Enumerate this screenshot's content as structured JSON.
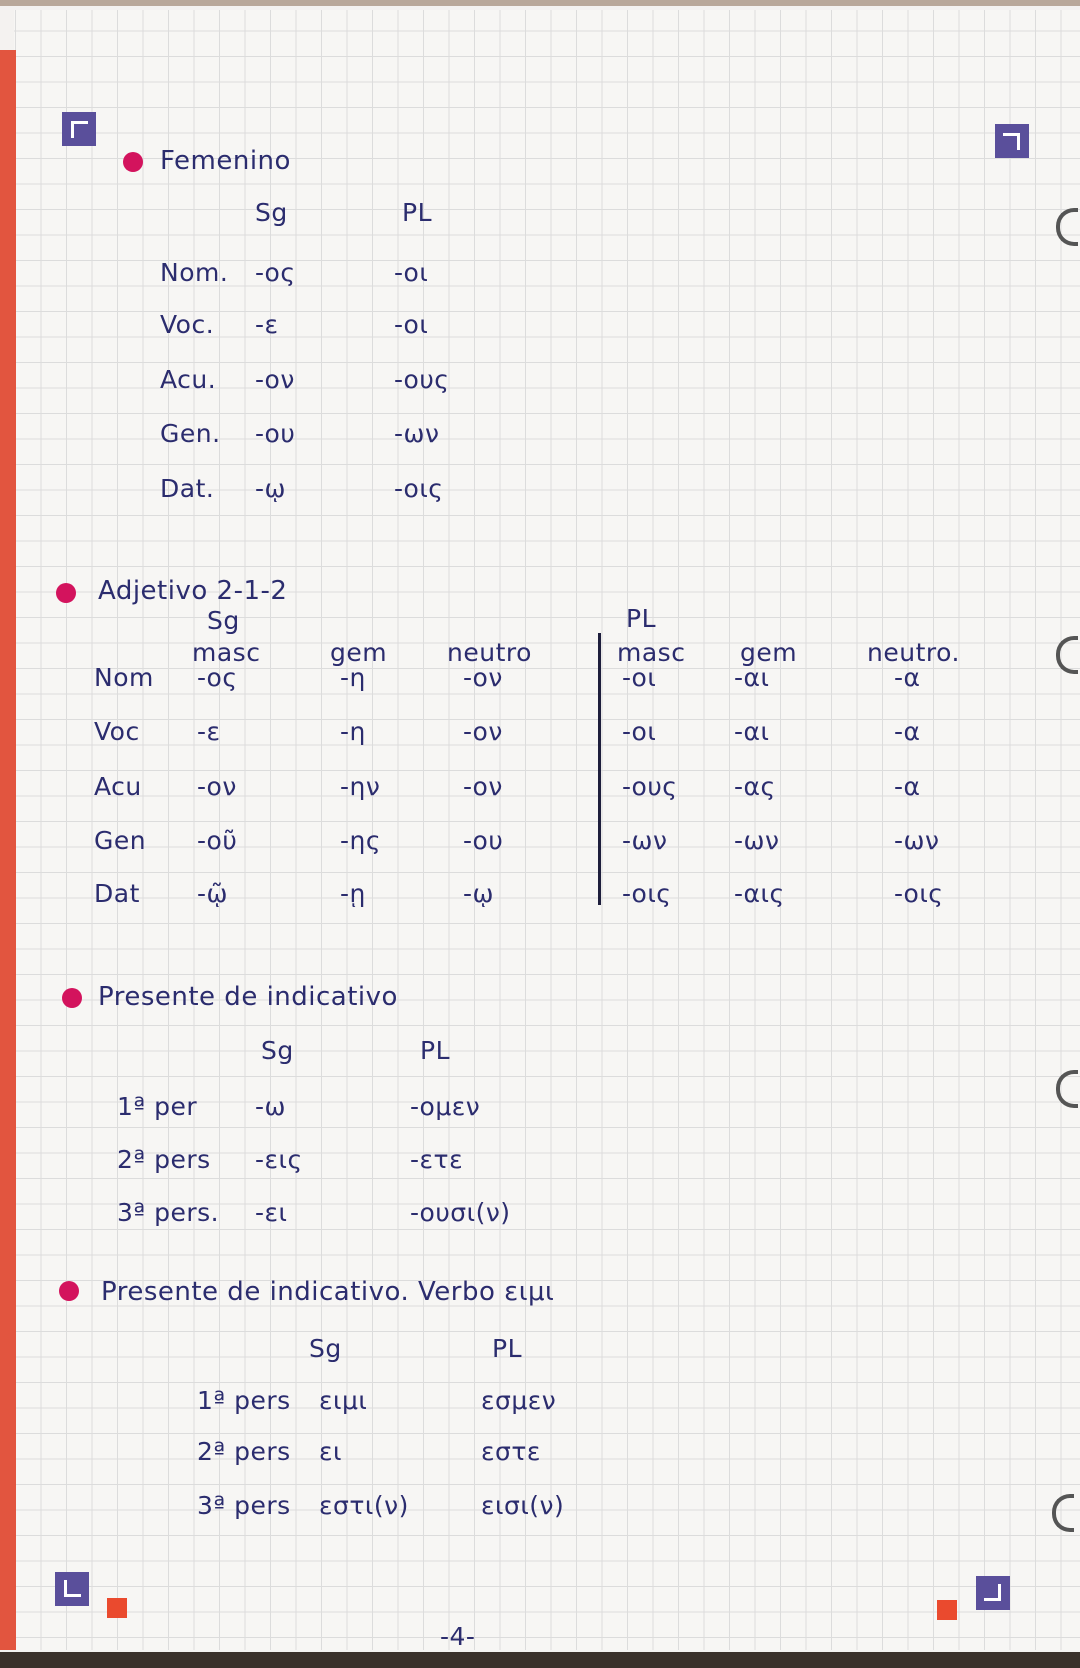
{
  "femenino": {
    "title": "Femenino",
    "headers": [
      "Sg",
      "PL"
    ],
    "rows": [
      [
        "Nom.",
        "-ος",
        "-οι"
      ],
      [
        "Voc.",
        "-ε",
        "-οι"
      ],
      [
        "Acu.",
        "-ον",
        "-ους"
      ],
      [
        "Gen.",
        "-ου",
        "-ων"
      ],
      [
        "Dat.",
        "-ῳ",
        "-οις"
      ]
    ]
  },
  "adjetivo": {
    "title": "Adjetivo 2-1-2",
    "sg": "Sg",
    "pl": "PL",
    "subheaders": [
      "masc",
      "gem",
      "neutro",
      "masc",
      "gem",
      "neutro."
    ],
    "rows": [
      [
        "Nom",
        "-ος",
        "-η",
        "-ον",
        "-οι",
        "-αι",
        "-α"
      ],
      [
        "Voc",
        "-ε",
        "-η",
        "-ον",
        "-οι",
        "-αι",
        "-α"
      ],
      [
        "Acu",
        "-ον",
        "-ην",
        "-ον",
        "-ους",
        "-ας",
        "-α"
      ],
      [
        "Gen",
        "-οῦ",
        "-ης",
        "-ου",
        "-ων",
        "-ων",
        "-ων"
      ],
      [
        "Dat",
        "-ῷ",
        "-ῃ",
        "-ῳ",
        "-οις",
        "-αις",
        "-οις"
      ]
    ]
  },
  "presente": {
    "title": "Presente de indicativo",
    "headers": [
      "Sg",
      "PL"
    ],
    "rows": [
      [
        "1ª per",
        "-ω",
        "-ομεν"
      ],
      [
        "2ª pers",
        "-εις",
        "-ετε"
      ],
      [
        "3ª pers.",
        "-ει",
        "-ουσι(ν)"
      ]
    ]
  },
  "verbo": {
    "title": "Presente de indicativo. Verbo ειμι",
    "headers": [
      "Sg",
      "PL"
    ],
    "rows": [
      [
        "1ª pers",
        "ειμι",
        "εσμεν"
      ],
      [
        "2ª pers",
        "ει",
        "εστε"
      ],
      [
        "3ª pers",
        "εστι(ν)",
        "εισι(ν)"
      ]
    ]
  },
  "page_number": "-4-",
  "colors": {
    "ink": "#2b2c6e",
    "bullet": "#d3135d",
    "marker": "#5a4f9b",
    "margin": "#e2553f"
  }
}
